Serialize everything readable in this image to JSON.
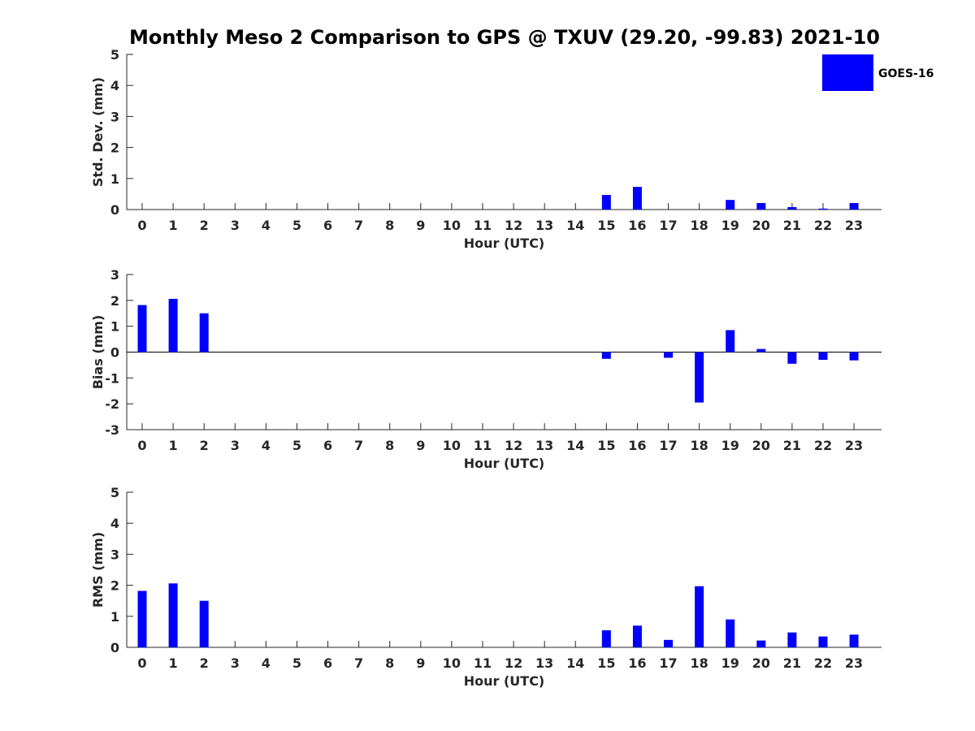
{
  "title": "Monthly Meso 2 Comparison to GPS @ TXUV (29.20, -99.83) 2021-10",
  "legend": {
    "label": "GOES-16",
    "color": "#0000ff",
    "placement": "top-right"
  },
  "chart_data": [
    {
      "type": "bar",
      "ylabel": "Std. Dev. (mm)",
      "xlabel": "Hour (UTC)",
      "ylim": [
        0,
        5
      ],
      "yticks": [
        0,
        1,
        2,
        3,
        4,
        5
      ],
      "categories": [
        "0",
        "1",
        "2",
        "3",
        "4",
        "5",
        "6",
        "7",
        "8",
        "9",
        "10",
        "11",
        "12",
        "13",
        "14",
        "15",
        "16",
        "17",
        "18",
        "19",
        "20",
        "21",
        "22",
        "23"
      ],
      "values": [
        0,
        0,
        0,
        0,
        0,
        0,
        0,
        0,
        0,
        0,
        0,
        0,
        0,
        0,
        0,
        0.47,
        0.73,
        0,
        0,
        0.31,
        0.21,
        0.08,
        0.03,
        0.21
      ],
      "zero_line": false
    },
    {
      "type": "bar",
      "ylabel": "Bias (mm)",
      "xlabel": "Hour (UTC)",
      "ylim": [
        -3,
        3
      ],
      "yticks": [
        -3,
        -2,
        -1,
        0,
        1,
        2,
        3
      ],
      "categories": [
        "0",
        "1",
        "2",
        "3",
        "4",
        "5",
        "6",
        "7",
        "8",
        "9",
        "10",
        "11",
        "12",
        "13",
        "14",
        "15",
        "16",
        "17",
        "18",
        "19",
        "20",
        "21",
        "22",
        "23"
      ],
      "values": [
        1.82,
        2.06,
        1.5,
        0,
        0,
        0,
        0,
        0,
        0,
        0,
        0,
        0,
        0,
        0,
        0,
        -0.26,
        0,
        -0.22,
        -1.95,
        0.85,
        0.12,
        -0.45,
        -0.3,
        -0.32
      ],
      "zero_line": true
    },
    {
      "type": "bar",
      "ylabel": "RMS (mm)",
      "xlabel": "Hour (UTC)",
      "ylim": [
        0,
        5
      ],
      "yticks": [
        0,
        1,
        2,
        3,
        4,
        5
      ],
      "categories": [
        "0",
        "1",
        "2",
        "3",
        "4",
        "5",
        "6",
        "7",
        "8",
        "9",
        "10",
        "11",
        "12",
        "13",
        "14",
        "15",
        "16",
        "17",
        "18",
        "19",
        "20",
        "21",
        "22",
        "23"
      ],
      "values": [
        1.82,
        2.06,
        1.5,
        0,
        0,
        0,
        0,
        0,
        0,
        0,
        0,
        0,
        0,
        0,
        0,
        0.55,
        0.7,
        0.24,
        1.97,
        0.9,
        0.22,
        0.48,
        0.35,
        0.41
      ],
      "zero_line": false
    }
  ]
}
